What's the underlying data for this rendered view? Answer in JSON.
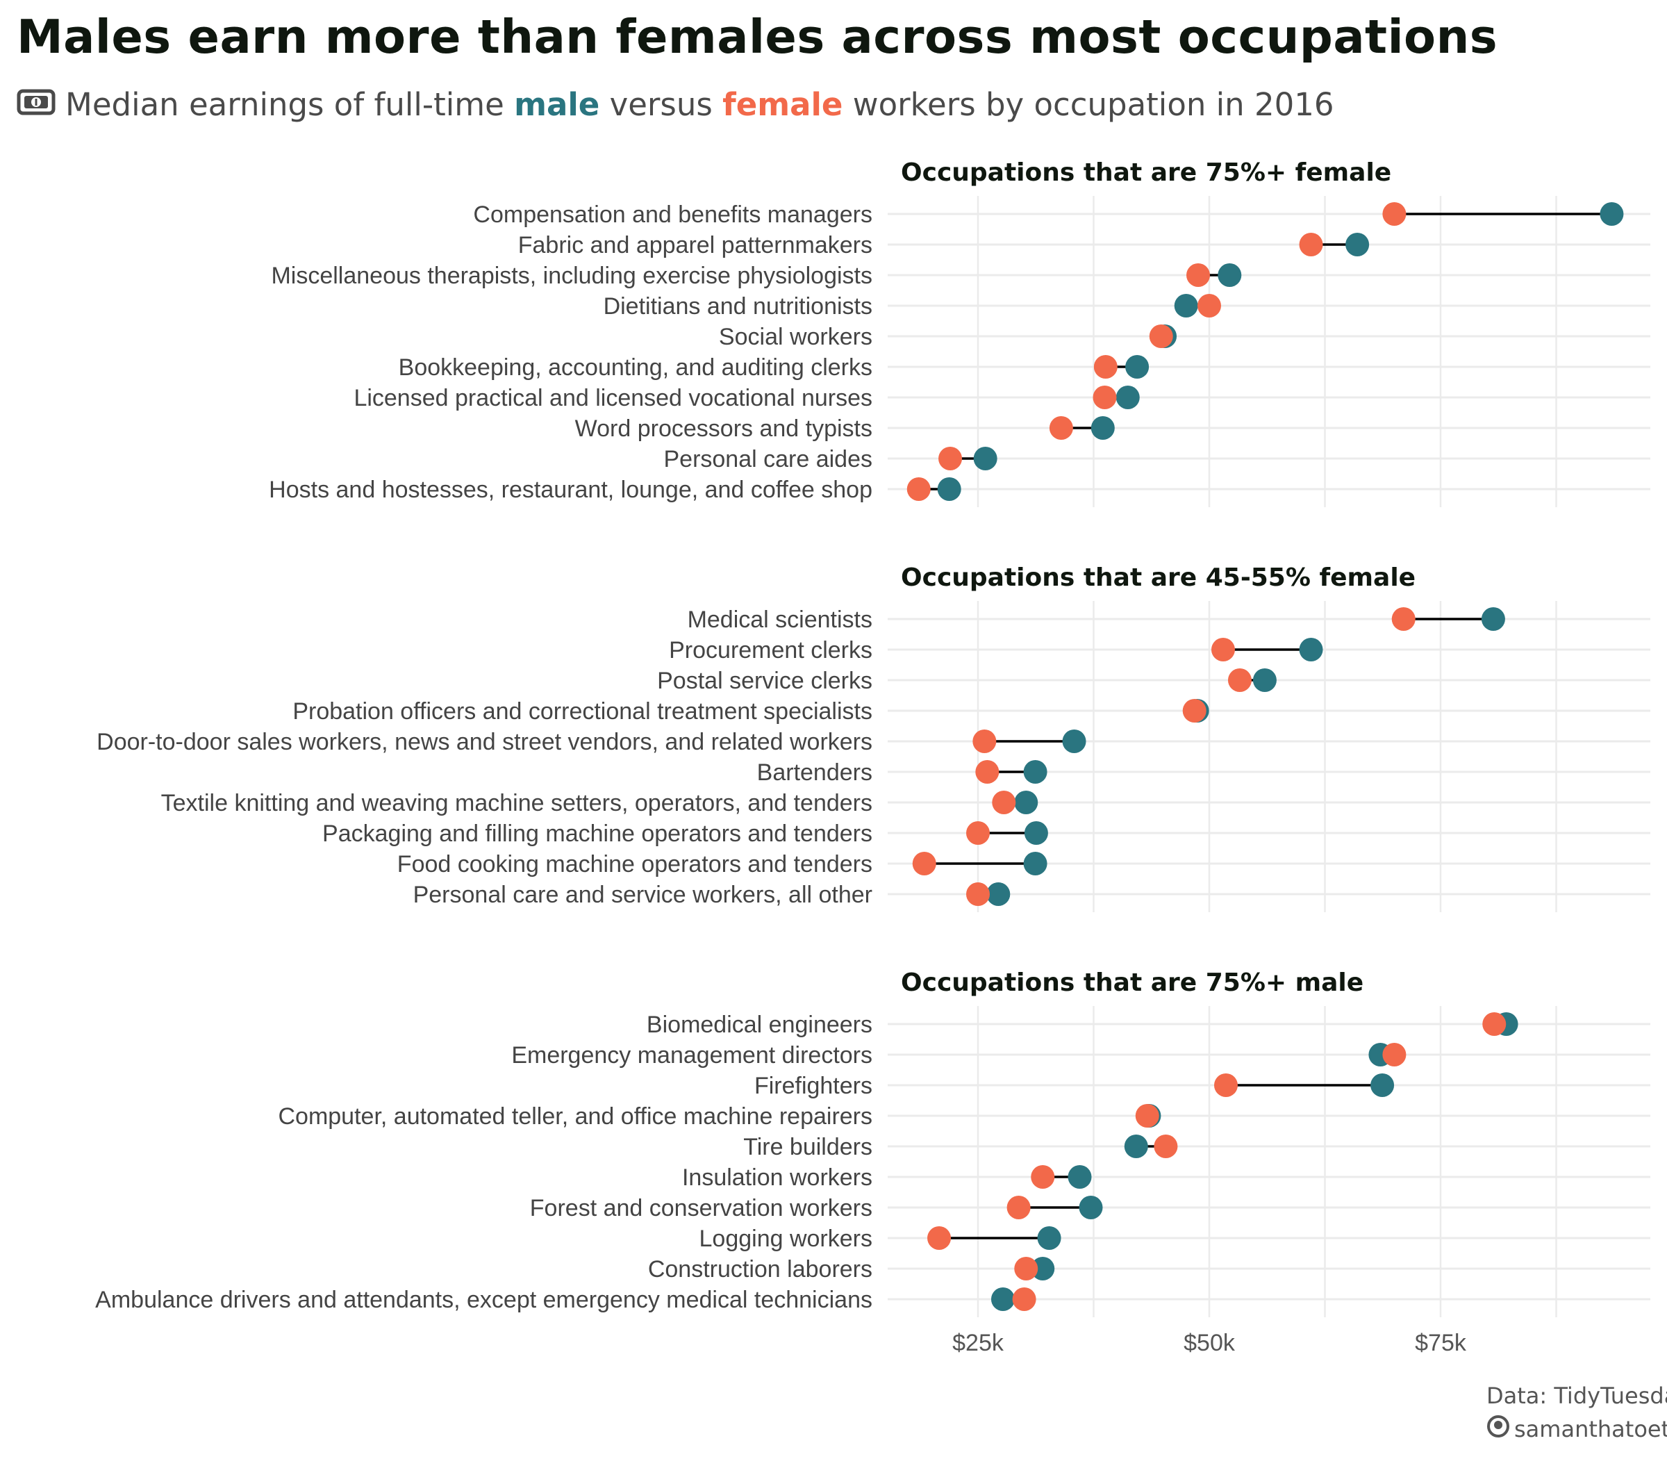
{
  "title": "Males earn more than females across most occupations",
  "subtitle": {
    "prefix": "Median earnings of full-time",
    "male": "male",
    "middle": "versus",
    "female": "female",
    "suffix": "workers by occupation in 2016",
    "icon": "money-bill-icon"
  },
  "colors": {
    "male": "#2a7580",
    "female": "#f2694a",
    "segment": "#000000",
    "grid": "#ebebeb"
  },
  "caption": {
    "line1": "Data: TidyTuesday",
    "line2": "samanthatoet",
    "icon": "github-icon"
  },
  "chart_data": {
    "type": "dumbbell",
    "xlim": [
      15000,
      98000
    ],
    "x_ticks": [
      25000,
      50000,
      75000
    ],
    "x_tick_labels": [
      "$25k",
      "$50k",
      "$75k"
    ],
    "grid": true,
    "series": [
      {
        "name": "male"
      },
      {
        "name": "female"
      }
    ],
    "facets": [
      {
        "title": "Occupations that are 75%+ female",
        "rows": [
          {
            "label": "Compensation and benefits managers",
            "female": 70000,
            "male": 93500
          },
          {
            "label": "Fabric and apparel patternmakers",
            "female": 61000,
            "male": 66000
          },
          {
            "label": "Miscellaneous therapists, including exercise physiologists",
            "female": 48800,
            "male": 52200
          },
          {
            "label": "Dietitians and nutritionists",
            "female": 50000,
            "male": 47500
          },
          {
            "label": "Social workers",
            "female": 44800,
            "male": 45200
          },
          {
            "label": "Bookkeeping, accounting, and auditing clerks",
            "female": 38800,
            "male": 42200
          },
          {
            "label": "Licensed practical and licensed vocational nurses",
            "female": 38700,
            "male": 41200
          },
          {
            "label": "Word processors and typists",
            "female": 34000,
            "male": 38500
          },
          {
            "label": "Personal care aides",
            "female": 22000,
            "male": 25800
          },
          {
            "label": "Hosts and hostesses, restaurant, lounge, and coffee shop",
            "female": 18600,
            "male": 21900
          }
        ]
      },
      {
        "title": "Occupations that are 45-55% female",
        "rows": [
          {
            "label": "Medical scientists",
            "female": 71000,
            "male": 80700
          },
          {
            "label": "Procurement clerks",
            "female": 51500,
            "male": 61000
          },
          {
            "label": "Postal service clerks",
            "female": 53300,
            "male": 56000
          },
          {
            "label": "Probation officers and correctional treatment specialists",
            "female": 48400,
            "male": 48700
          },
          {
            "label": "Door-to-door sales workers, news and street vendors, and related workers",
            "female": 25700,
            "male": 35400
          },
          {
            "label": "Bartenders",
            "female": 26000,
            "male": 31200
          },
          {
            "label": "Textile knitting and weaving machine setters, operators, and tenders",
            "female": 27800,
            "male": 30200
          },
          {
            "label": "Packaging and filling machine operators and tenders",
            "female": 25000,
            "male": 31300
          },
          {
            "label": "Food cooking machine operators and tenders",
            "female": 19200,
            "male": 31200
          },
          {
            "label": "Personal care and service workers, all other",
            "female": 25000,
            "male": 27200
          }
        ]
      },
      {
        "title": "Occupations that are 75%+ male",
        "rows": [
          {
            "label": "Biomedical engineers",
            "female": 80800,
            "male": 82100
          },
          {
            "label": "Emergency management directors",
            "female": 70000,
            "male": 68500
          },
          {
            "label": "Firefighters",
            "female": 51800,
            "male": 68700
          },
          {
            "label": "Computer, automated teller, and office machine repairers",
            "female": 43300,
            "male": 43500
          },
          {
            "label": "Tire builders",
            "female": 45300,
            "male": 42100
          },
          {
            "label": "Insulation workers",
            "female": 32000,
            "male": 36000
          },
          {
            "label": "Forest and conservation workers",
            "female": 29400,
            "male": 37200
          },
          {
            "label": "Logging workers",
            "female": 20800,
            "male": 32700
          },
          {
            "label": "Construction laborers",
            "female": 30200,
            "male": 32000
          },
          {
            "label": "Ambulance drivers and attendants, except emergency medical technicians",
            "female": 30000,
            "male": 27700
          }
        ]
      }
    ]
  }
}
